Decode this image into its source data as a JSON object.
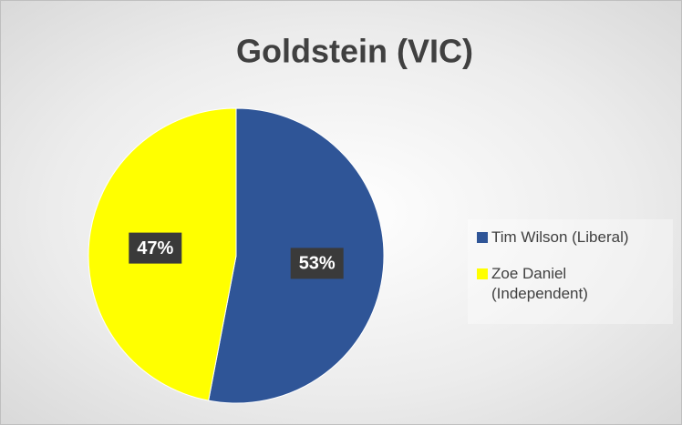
{
  "chart_data": {
    "type": "pie",
    "title": "Goldstein (VIC)",
    "categories": [
      "Tim Wilson (Liberal)",
      "Zoe Daniel (Independent)"
    ],
    "values": [
      53,
      47
    ],
    "value_labels": [
      "53%",
      "47%"
    ],
    "colors": [
      "#2f5597",
      "#ffff00"
    ],
    "legend": "right"
  }
}
